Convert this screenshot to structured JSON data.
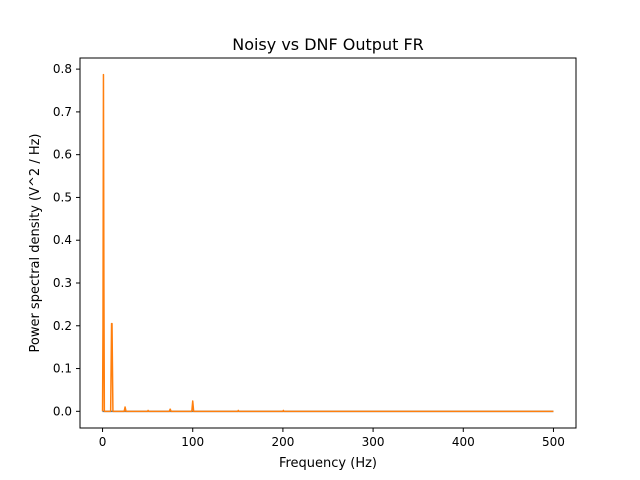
{
  "chart_data": {
    "type": "line",
    "title": "Noisy vs DNF Output FR",
    "xlabel": "Frequency (Hz)",
    "ylabel": "Power spectral density (V^2 / Hz)",
    "xlim": [
      -25,
      525
    ],
    "ylim": [
      -0.039,
      0.826
    ],
    "xticks": [
      0,
      100,
      200,
      300,
      400,
      500
    ],
    "xtick_labels": [
      "0",
      "100",
      "200",
      "300",
      "400",
      "500"
    ],
    "yticks": [
      0.0,
      0.1,
      0.2,
      0.3,
      0.4,
      0.5,
      0.6,
      0.7,
      0.8
    ],
    "ytick_labels": [
      "0.0",
      "0.1",
      "0.2",
      "0.3",
      "0.4",
      "0.5",
      "0.6",
      "0.7",
      "0.8"
    ],
    "grid": false,
    "legend": "none",
    "series": [
      {
        "color": "#1f77b4",
        "points": [
          [
            0,
            0.0
          ],
          [
            5,
            0.0
          ],
          [
            10,
            0.0
          ],
          [
            100,
            0.0
          ],
          [
            200,
            0.0
          ],
          [
            300,
            0.0
          ],
          [
            400,
            0.0
          ],
          [
            500,
            0.0
          ]
        ]
      },
      {
        "color": "#ff7f0e",
        "points": [
          [
            0,
            0.0
          ],
          [
            0.5,
            0.2
          ],
          [
            1,
            0.787
          ],
          [
            1.5,
            0.3
          ],
          [
            2,
            0.0
          ],
          [
            9,
            0.0
          ],
          [
            9.5,
            0.1
          ],
          [
            10,
            0.205
          ],
          [
            10.5,
            0.205
          ],
          [
            11,
            0.1
          ],
          [
            11.5,
            0.0
          ],
          [
            24,
            0.0
          ],
          [
            25,
            0.01
          ],
          [
            26,
            0.0
          ],
          [
            50,
            0.0
          ],
          [
            50.5,
            0.002
          ],
          [
            51,
            0.0
          ],
          [
            74,
            0.0
          ],
          [
            75,
            0.005
          ],
          [
            76,
            0.0
          ],
          [
            99,
            0.0
          ],
          [
            100,
            0.024
          ],
          [
            101,
            0.0
          ],
          [
            150,
            0.0
          ],
          [
            150.5,
            0.002
          ],
          [
            151,
            0.0
          ],
          [
            200,
            0.0
          ],
          [
            200.5,
            0.002
          ],
          [
            201,
            0.0
          ],
          [
            300,
            0.0
          ],
          [
            400,
            0.0
          ],
          [
            500,
            0.0
          ]
        ]
      }
    ]
  }
}
